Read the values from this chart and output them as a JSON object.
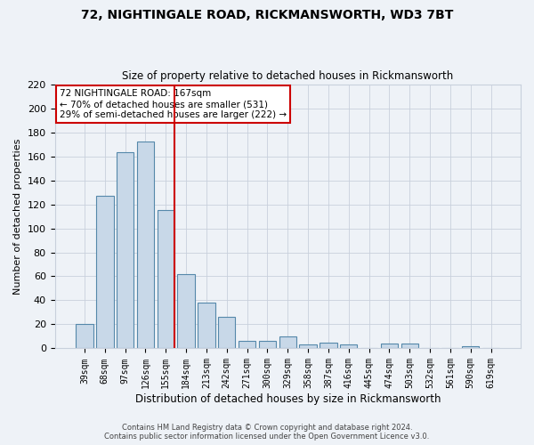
{
  "title1": "72, NIGHTINGALE ROAD, RICKMANSWORTH, WD3 7BT",
  "title2": "Size of property relative to detached houses in Rickmansworth",
  "xlabel": "Distribution of detached houses by size in Rickmansworth",
  "ylabel": "Number of detached properties",
  "categories": [
    "39sqm",
    "68sqm",
    "97sqm",
    "126sqm",
    "155sqm",
    "184sqm",
    "213sqm",
    "242sqm",
    "271sqm",
    "300sqm",
    "329sqm",
    "358sqm",
    "387sqm",
    "416sqm",
    "445sqm",
    "474sqm",
    "503sqm",
    "532sqm",
    "561sqm",
    "590sqm",
    "619sqm"
  ],
  "values": [
    20,
    127,
    163,
    172,
    115,
    62,
    38,
    26,
    6,
    6,
    10,
    3,
    5,
    3,
    0,
    4,
    4,
    0,
    0,
    2,
    0
  ],
  "bar_color": "#c8d8e8",
  "bar_edge_color": "#5588aa",
  "vline_color": "#cc0000",
  "ylim": [
    0,
    220
  ],
  "yticks": [
    0,
    20,
    40,
    60,
    80,
    100,
    120,
    140,
    160,
    180,
    200,
    220
  ],
  "annotation_title": "72 NIGHTINGALE ROAD: 167sqm",
  "annotation_line1": "← 70% of detached houses are smaller (531)",
  "annotation_line2": "29% of semi-detached houses are larger (222) →",
  "annotation_box_color": "#ffffff",
  "annotation_box_edge": "#cc0000",
  "footer1": "Contains HM Land Registry data © Crown copyright and database right 2024.",
  "footer2": "Contains public sector information licensed under the Open Government Licence v3.0.",
  "bg_color": "#eef2f7",
  "grid_color": "#c8d0dc"
}
